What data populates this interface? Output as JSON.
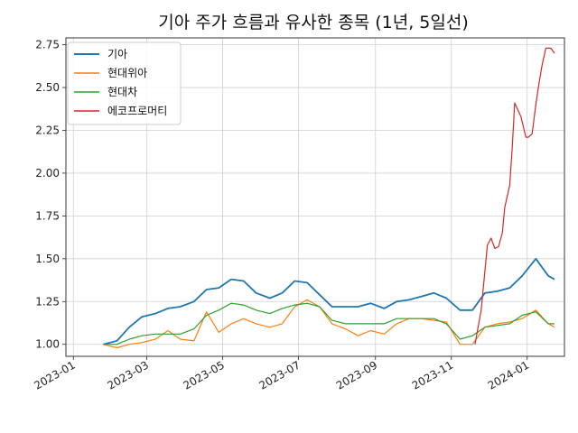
{
  "chart_data": {
    "type": "line",
    "title": "기아 주가 흐름과 유사한 종목 (1년, 5일선)",
    "xlabel": "",
    "ylabel": "",
    "x_ticks": [
      "2023-01",
      "2023-03",
      "2023-05",
      "2023-07",
      "2023-09",
      "2023-11",
      "2024-01"
    ],
    "y_ticks": [
      "1.00",
      "1.25",
      "1.50",
      "1.75",
      "2.00",
      "2.25",
      "2.50",
      "2.75"
    ],
    "xlim": [
      "2022-12-26",
      "2024-01-31"
    ],
    "ylim": [
      0.93,
      2.79
    ],
    "grid": true,
    "legend_position": "upper-left",
    "x": [
      "2023-01-25",
      "2023-02-05",
      "2023-02-15",
      "2023-02-25",
      "2023-03-08",
      "2023-03-18",
      "2023-03-28",
      "2023-04-08",
      "2023-04-18",
      "2023-04-28",
      "2023-05-08",
      "2023-05-18",
      "2023-05-28",
      "2023-06-08",
      "2023-06-18",
      "2023-06-28",
      "2023-07-08",
      "2023-07-18",
      "2023-07-28",
      "2023-08-08",
      "2023-08-18",
      "2023-08-28",
      "2023-09-08",
      "2023-09-18",
      "2023-09-28",
      "2023-10-08",
      "2023-10-18",
      "2023-10-28",
      "2023-11-08",
      "2023-11-18",
      "2023-11-28",
      "2023-12-08",
      "2023-12-18",
      "2023-12-28",
      "2024-01-08",
      "2024-01-18",
      "2024-01-23"
    ],
    "series": [
      {
        "name": "기아",
        "color": "#1f77b4",
        "values": [
          1.0,
          1.02,
          1.1,
          1.16,
          1.18,
          1.21,
          1.22,
          1.25,
          1.32,
          1.33,
          1.38,
          1.37,
          1.3,
          1.27,
          1.3,
          1.37,
          1.36,
          1.29,
          1.22,
          1.22,
          1.22,
          1.24,
          1.21,
          1.25,
          1.26,
          1.28,
          1.3,
          1.27,
          1.2,
          1.2,
          1.3,
          1.31,
          1.33,
          1.4,
          1.5,
          1.4,
          1.38
        ]
      },
      {
        "name": "현대위아",
        "color": "#ff7f0e",
        "values": [
          1.0,
          0.98,
          1.0,
          1.01,
          1.03,
          1.08,
          1.03,
          1.02,
          1.19,
          1.07,
          1.12,
          1.15,
          1.12,
          1.1,
          1.12,
          1.22,
          1.26,
          1.22,
          1.12,
          1.09,
          1.05,
          1.08,
          1.06,
          1.12,
          1.15,
          1.15,
          1.14,
          1.13,
          1.0,
          1.0,
          1.1,
          1.12,
          1.13,
          1.15,
          1.2,
          1.12,
          1.1
        ]
      },
      {
        "name": "현대차",
        "color": "#2ca02c",
        "values": [
          1.0,
          1.0,
          1.03,
          1.05,
          1.06,
          1.06,
          1.06,
          1.09,
          1.17,
          1.2,
          1.24,
          1.23,
          1.2,
          1.18,
          1.21,
          1.23,
          1.24,
          1.22,
          1.14,
          1.12,
          1.12,
          1.12,
          1.12,
          1.15,
          1.15,
          1.15,
          1.15,
          1.12,
          1.03,
          1.05,
          1.1,
          1.11,
          1.12,
          1.17,
          1.19,
          1.12,
          1.12
        ]
      },
      {
        "name": "에코프로머티",
        "color": "#d62728",
        "x": [
          "2023-11-20",
          "2023-11-25",
          "2023-11-30",
          "2023-12-03",
          "2023-12-06",
          "2023-12-09",
          "2023-12-12",
          "2023-12-14",
          "2023-12-18",
          "2023-12-20",
          "2023-12-22",
          "2023-12-27",
          "2023-12-31",
          "2024-01-02",
          "2024-01-05",
          "2024-01-08",
          "2024-01-10",
          "2024-01-13",
          "2024-01-16",
          "2024-01-20",
          "2024-01-23"
        ],
        "values": [
          1.0,
          1.2,
          1.58,
          1.62,
          1.56,
          1.57,
          1.65,
          1.8,
          1.93,
          2.15,
          2.41,
          2.33,
          2.21,
          2.21,
          2.23,
          2.4,
          2.5,
          2.63,
          2.73,
          2.73,
          2.7
        ]
      }
    ]
  }
}
